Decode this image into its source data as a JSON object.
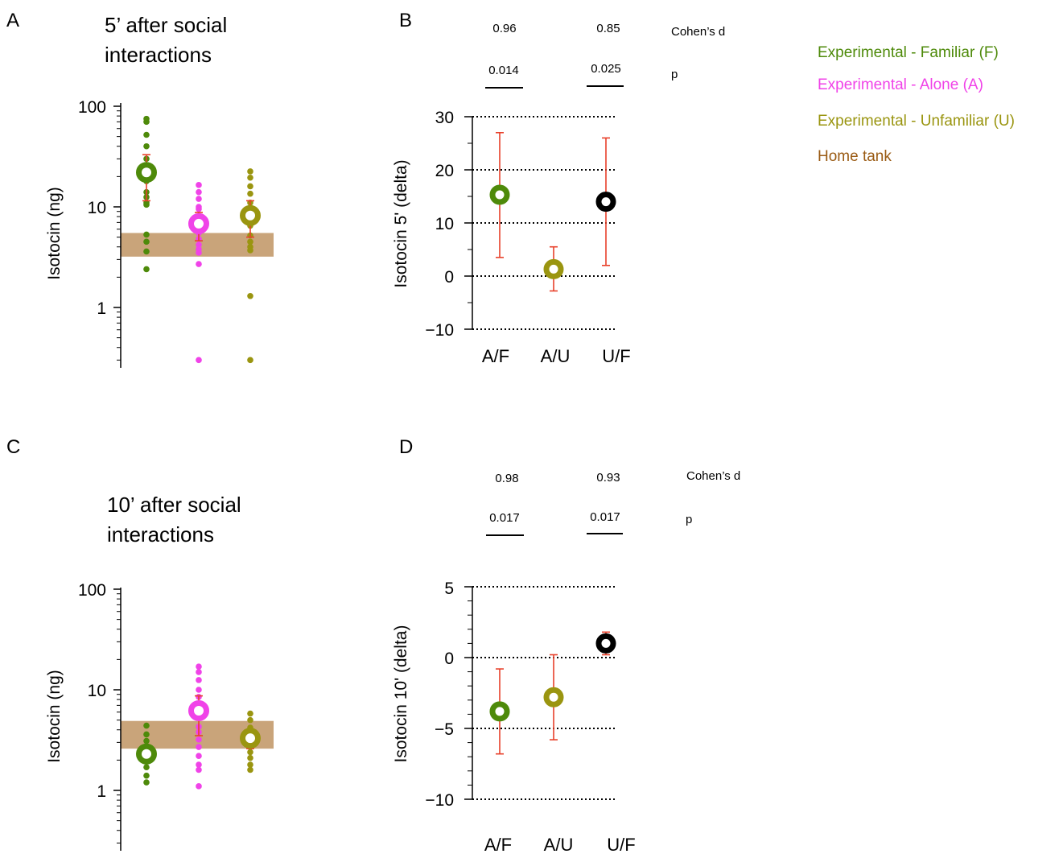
{
  "chart_data": [
    {
      "panel": "A",
      "type": "scatter",
      "title_lines": [
        "5’ after social",
        "interactions"
      ],
      "ylabel": "Isotocin (ng)",
      "yscale": "log",
      "ylim": [
        0.3,
        100
      ],
      "ticks": [
        "1",
        "10",
        "100"
      ],
      "reference_band": {
        "name": "Home tank",
        "low": 3.2,
        "high": 5.5
      },
      "groups": [
        {
          "key": "F",
          "color": "#4e8a0a",
          "mean": 22,
          "err_low": 11.5,
          "err_high": 33,
          "points": [
            75,
            70,
            52,
            40,
            30,
            25,
            22,
            18,
            14,
            12.5,
            11,
            10.5,
            5.3,
            4.5,
            3.6,
            2.4
          ]
        },
        {
          "key": "A",
          "color": "#f043e8",
          "mean": 6.8,
          "err_low": 4.6,
          "err_high": 8.8,
          "points": [
            16.5,
            14,
            12,
            10,
            9.5,
            8,
            7.2,
            6.2,
            5.5,
            4.8,
            4.2,
            3.8,
            3.5,
            2.7,
            0.3
          ]
        },
        {
          "key": "U",
          "color": "#9a9510",
          "mean": 8.2,
          "err_low": 5.0,
          "err_high": 11.5,
          "points": [
            22.5,
            19.5,
            16,
            13.5,
            11,
            9,
            7.5,
            6.5,
            5.2,
            4.5,
            4.0,
            3.7,
            1.3,
            0.3
          ]
        }
      ]
    },
    {
      "panel": "B",
      "type": "scatter",
      "ylabel": "Isotocin 5' (delta)",
      "ylim": [
        -10,
        30
      ],
      "ticks": [
        "30",
        "20",
        "10",
        "0",
        "−10"
      ],
      "grid_values": [
        30,
        20,
        10,
        0,
        -10
      ],
      "categories": [
        "A/F",
        "A/U",
        "U/F"
      ],
      "points": [
        {
          "category": "A/F",
          "value": 15.3,
          "ci": [
            3.5,
            27
          ],
          "color": "#4e8a0a"
        },
        {
          "category": "A/U",
          "value": 1.3,
          "ci": [
            -2.8,
            5.5
          ],
          "color": "#9a9510"
        },
        {
          "category": "U/F",
          "value": 14,
          "ci": [
            2,
            26
          ],
          "color": "#000000"
        }
      ],
      "cohens_d": [
        "0.96",
        "0.85"
      ],
      "p_values": [
        "0.014",
        "0.025"
      ],
      "cohens_label": "Cohen’s d",
      "p_label": "p"
    },
    {
      "panel": "C",
      "type": "scatter",
      "title_lines": [
        "10’ after social",
        "interactions"
      ],
      "ylabel": "Isotocin (ng)",
      "yscale": "log",
      "ylim": [
        0.5,
        100
      ],
      "ticks": [
        "1",
        "10",
        "100"
      ],
      "reference_band": {
        "name": "Home tank",
        "low": 2.6,
        "high": 4.9
      },
      "groups": [
        {
          "key": "F",
          "color": "#4e8a0a",
          "mean": 2.3,
          "err_low": 2.0,
          "err_high": 2.7,
          "points": [
            4.4,
            3.6,
            3.1,
            2.7,
            2.5,
            2.2,
            2.0,
            1.7,
            1.4,
            1.2
          ]
        },
        {
          "key": "A",
          "color": "#f043e8",
          "mean": 6.2,
          "err_low": 3.5,
          "err_high": 8.7,
          "points": [
            17,
            15,
            12.5,
            10,
            8.5,
            7.2,
            5.5,
            4.3,
            3.8,
            3.2,
            2.7,
            2.2,
            1.8,
            1.6,
            1.1
          ]
        },
        {
          "key": "U",
          "color": "#9a9510",
          "mean": 3.3,
          "err_low": 2.6,
          "err_high": 4.0,
          "points": [
            5.8,
            5.0,
            4.2,
            3.6,
            3.3,
            3.0,
            2.7,
            2.4,
            2.1,
            1.8,
            1.6
          ]
        }
      ]
    },
    {
      "panel": "D",
      "type": "scatter",
      "ylabel": "Isotocin 10' (delta)",
      "ylim": [
        -10,
        5
      ],
      "ticks": [
        "5",
        "0",
        "−5",
        "−10"
      ],
      "grid_values": [
        5,
        0,
        -5,
        -10
      ],
      "categories": [
        "A/F",
        "A/U",
        "U/F"
      ],
      "points": [
        {
          "category": "A/F",
          "value": -3.8,
          "ci": [
            -6.8,
            -0.8
          ],
          "color": "#4e8a0a"
        },
        {
          "category": "A/U",
          "value": -2.8,
          "ci": [
            -5.8,
            0.2
          ],
          "color": "#9a9510"
        },
        {
          "category": "U/F",
          "value": 1.0,
          "ci": [
            0.2,
            1.8
          ],
          "color": "#000000"
        }
      ],
      "cohens_d": [
        "0.98",
        "0.93"
      ],
      "p_values": [
        "0.017",
        "0.017"
      ],
      "cohens_label": "Cohen’s d",
      "p_label": "p"
    }
  ],
  "legend": [
    {
      "label": "Experimental - Familiar (F)",
      "color": "#4e8a0a"
    },
    {
      "label": "Experimental - Alone (A)",
      "color": "#f043e8"
    },
    {
      "label": "Experimental - Unfamiliar (U)",
      "color": "#9a9510"
    },
    {
      "label": "Home tank",
      "color": "#9a5b14"
    }
  ],
  "colors": {
    "band": "#c9a47a",
    "error_bar": "#e8402a",
    "zero_effect": "#000000"
  }
}
